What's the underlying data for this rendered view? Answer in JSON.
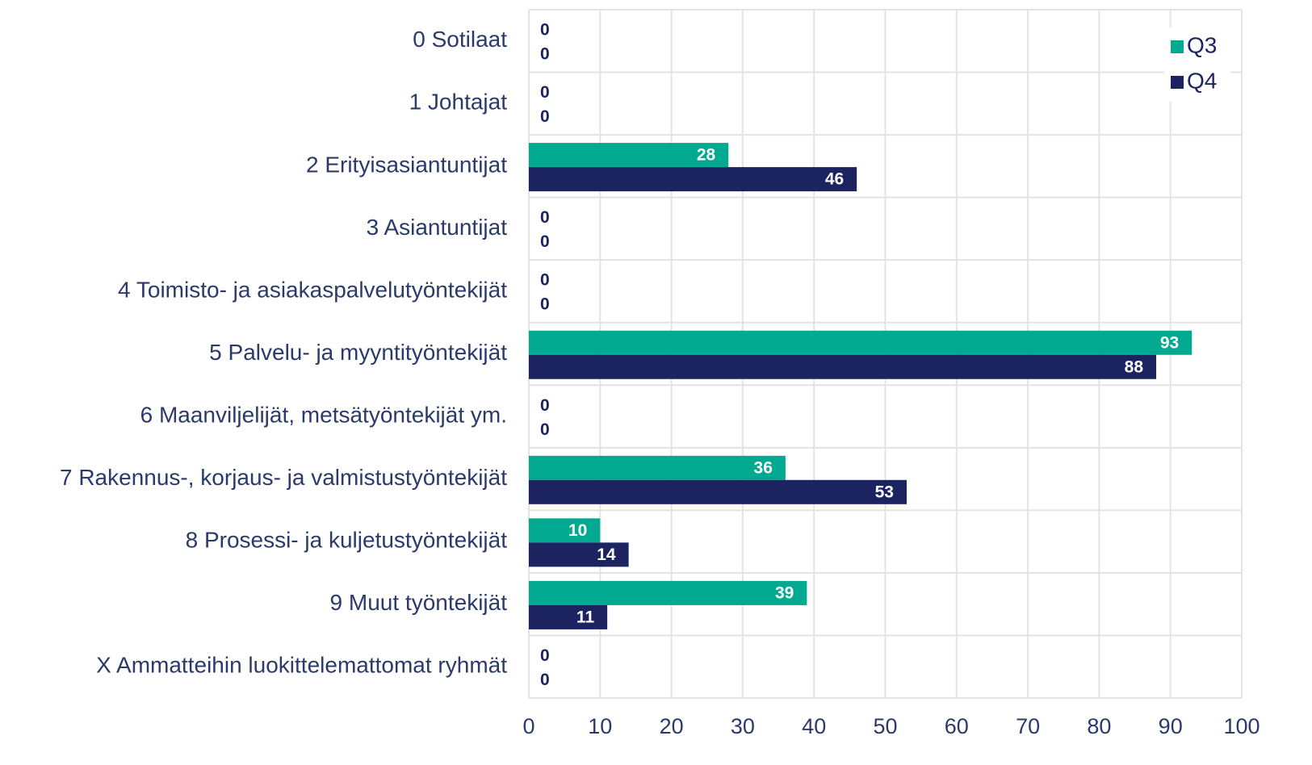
{
  "chart_data": {
    "type": "barh",
    "categories": [
      "0 Sotilaat",
      "1 Johtajat",
      "2 Erityisasiantuntijat",
      "3 Asiantuntijat",
      "4 Toimisto- ja asiakaspalvelutyöntekijät",
      "5 Palvelu- ja myyntityöntekijät",
      "6 Maanviljelijät, metsätyöntekijät ym.",
      "7 Rakennus-, korjaus- ja valmistustyöntekijät",
      "8 Prosessi- ja kuljetustyöntekijät",
      "9 Muut työntekijät",
      "X Ammatteihin luokittelemattomat ryhmät"
    ],
    "series": [
      {
        "name": "Q3",
        "color": "#00a98f",
        "values": [
          0,
          0,
          28,
          0,
          0,
          93,
          0,
          36,
          10,
          39,
          0
        ]
      },
      {
        "name": "Q4",
        "color": "#1b2461",
        "values": [
          0,
          0,
          46,
          0,
          0,
          88,
          0,
          53,
          14,
          11,
          0
        ]
      }
    ],
    "xlim": [
      0,
      100
    ],
    "xticks": [
      0,
      10,
      20,
      30,
      40,
      50,
      60,
      70,
      80,
      90,
      100
    ],
    "grid": true,
    "legend": "upper right"
  }
}
